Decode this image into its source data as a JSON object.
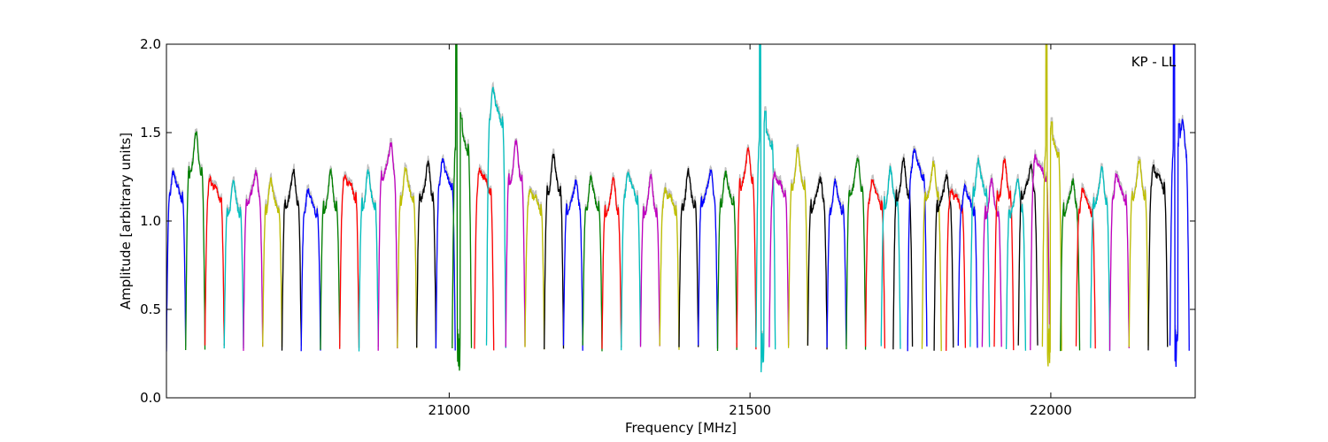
{
  "chart_data": {
    "type": "line",
    "title": "",
    "annotation": "KP - LL",
    "xlabel": "Frequency [MHz]",
    "ylabel": "Amplitude [arbitrary units]",
    "xlim": [
      20530,
      22240
    ],
    "ylim": [
      0.0,
      2.0
    ],
    "xticks": [
      21000,
      21500,
      22000
    ],
    "xtick_labels": [
      "21000",
      "21500",
      "22000"
    ],
    "yticks": [
      0.0,
      0.5,
      1.0,
      1.5,
      2.0
    ],
    "ytick_labels": [
      "0.0",
      "0.5",
      "1.0",
      "1.5",
      "2.0"
    ],
    "grid": false,
    "legend": "none",
    "background_trace_color": "#bfbfbf",
    "channel_width_mhz": 32,
    "band_shape": "each channel is a bandpass: amplitude rises from ~0.3 at the channel edges to a ~1.2 plateau",
    "channels": [
      {
        "start": 20530,
        "color": "#0000ff",
        "peak": 1.28
      },
      {
        "start": 20562,
        "color": "#008000",
        "peak": 1.45
      },
      {
        "start": 20594,
        "color": "#ff0000",
        "peak": 1.27
      },
      {
        "start": 20626,
        "color": "#00bfbf",
        "peak": 1.19
      },
      {
        "start": 20658,
        "color": "#bf00bf",
        "peak": 1.26
      },
      {
        "start": 20690,
        "color": "#bfbf00",
        "peak": 1.21
      },
      {
        "start": 20722,
        "color": "#000000",
        "peak": 1.25
      },
      {
        "start": 20754,
        "color": "#0000ff",
        "peak": 1.18
      },
      {
        "start": 20786,
        "color": "#008000",
        "peak": 1.23
      },
      {
        "start": 20818,
        "color": "#ff0000",
        "peak": 1.29
      },
      {
        "start": 20850,
        "color": "#00bfbf",
        "peak": 1.24
      },
      {
        "start": 20882,
        "color": "#bf00bf",
        "peak": 1.42
      },
      {
        "start": 20914,
        "color": "#bfbf00",
        "peak": 1.27
      },
      {
        "start": 20946,
        "color": "#000000",
        "peak": 1.29
      },
      {
        "start": 20978,
        "color": "#0000ff",
        "peak": 1.35
      },
      {
        "start": 21005,
        "color": "#008000",
        "peak": 1.58,
        "spike": 2.0,
        "dip": 0.15
      },
      {
        "start": 21042,
        "color": "#ff0000",
        "peak": 1.33
      },
      {
        "start": 21062,
        "color": "#00bfbf",
        "peak": 1.76
      },
      {
        "start": 21094,
        "color": "#bf00bf",
        "peak": 1.4
      },
      {
        "start": 21126,
        "color": "#bfbf00",
        "peak": 1.21
      },
      {
        "start": 21158,
        "color": "#000000",
        "peak": 1.33
      },
      {
        "start": 21190,
        "color": "#0000ff",
        "peak": 1.21
      },
      {
        "start": 21222,
        "color": "#008000",
        "peak": 1.22
      },
      {
        "start": 21254,
        "color": "#ff0000",
        "peak": 1.2
      },
      {
        "start": 21286,
        "color": "#00bfbf",
        "peak": 1.28
      },
      {
        "start": 21318,
        "color": "#bf00bf",
        "peak": 1.2
      },
      {
        "start": 21350,
        "color": "#bfbf00",
        "peak": 1.21
      },
      {
        "start": 21382,
        "color": "#000000",
        "peak": 1.24
      },
      {
        "start": 21414,
        "color": "#0000ff",
        "peak": 1.27
      },
      {
        "start": 21446,
        "color": "#008000",
        "peak": 1.25
      },
      {
        "start": 21478,
        "color": "#ff0000",
        "peak": 1.37
      },
      {
        "start": 21510,
        "color": "#00bfbf",
        "peak": 1.62,
        "spike": 2.0,
        "dip": 0.13
      },
      {
        "start": 21532,
        "color": "#bf00bf",
        "peak": 1.3
      },
      {
        "start": 21564,
        "color": "#bfbf00",
        "peak": 1.36
      },
      {
        "start": 21596,
        "color": "#000000",
        "peak": 1.23
      },
      {
        "start": 21628,
        "color": "#0000ff",
        "peak": 1.2
      },
      {
        "start": 21660,
        "color": "#008000",
        "peak": 1.32
      },
      {
        "start": 21692,
        "color": "#ff0000",
        "peak": 1.24
      },
      {
        "start": 21718,
        "color": "#00bfbf",
        "peak": 1.25
      },
      {
        "start": 21738,
        "color": "#000000",
        "peak": 1.3
      },
      {
        "start": 21762,
        "color": "#0000ff",
        "peak": 1.41
      },
      {
        "start": 21786,
        "color": "#bfbf00",
        "peak": 1.29
      },
      {
        "start": 21806,
        "color": "#000000",
        "peak": 1.24
      },
      {
        "start": 21826,
        "color": "#ff0000",
        "peak": 1.21
      },
      {
        "start": 21846,
        "color": "#0000ff",
        "peak": 1.2
      },
      {
        "start": 21866,
        "color": "#00bfbf",
        "peak": 1.32
      },
      {
        "start": 21886,
        "color": "#bf00bf",
        "peak": 1.19
      },
      {
        "start": 21906,
        "color": "#ff0000",
        "peak": 1.3
      },
      {
        "start": 21926,
        "color": "#00bfbf",
        "peak": 1.2
      },
      {
        "start": 21946,
        "color": "#000000",
        "peak": 1.3
      },
      {
        "start": 21966,
        "color": "#bf00bf",
        "peak": 1.4
      },
      {
        "start": 21986,
        "color": "#bfbf00",
        "peak": 1.56,
        "spike": 2.0,
        "dip": 0.17
      },
      {
        "start": 22016,
        "color": "#008000",
        "peak": 1.21
      },
      {
        "start": 22042,
        "color": "#ff0000",
        "peak": 1.19
      },
      {
        "start": 22066,
        "color": "#00bfbf",
        "peak": 1.26
      },
      {
        "start": 22098,
        "color": "#bf00bf",
        "peak": 1.27
      },
      {
        "start": 22130,
        "color": "#bfbf00",
        "peak": 1.3
      },
      {
        "start": 22162,
        "color": "#000000",
        "peak": 1.34
      },
      {
        "start": 22198,
        "color": "#0000ff",
        "peak": 1.55,
        "spike": 2.0,
        "dip": 0.17
      }
    ]
  }
}
